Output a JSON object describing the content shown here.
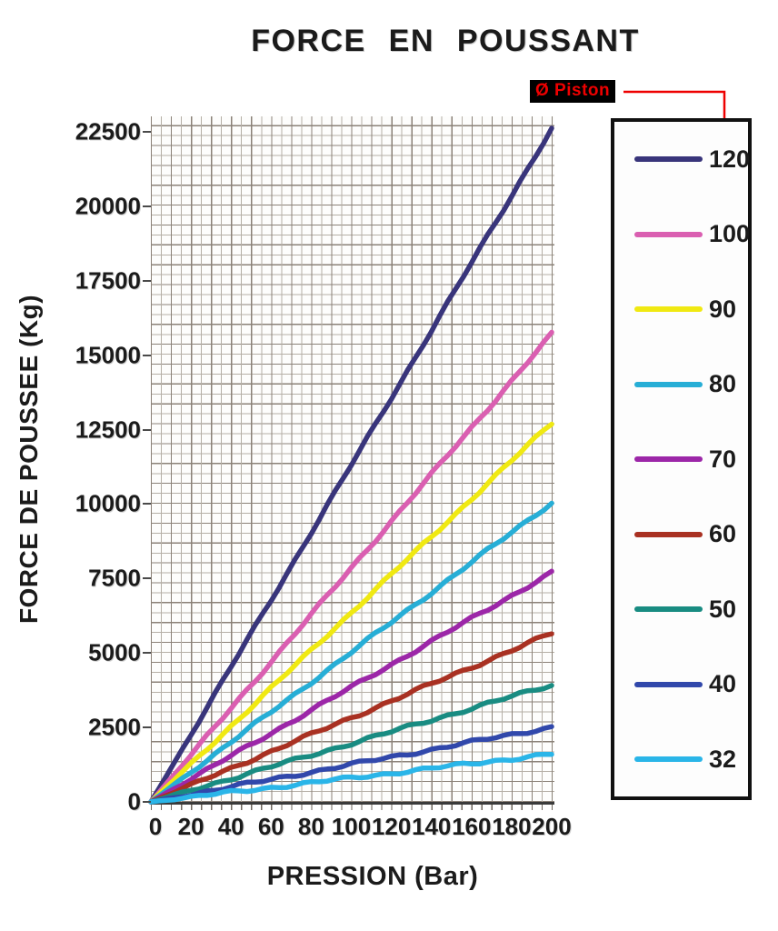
{
  "title": "FORCE EN POUSSANT",
  "annotation": {
    "label": "Ø Piston",
    "text_color": "#ee0000",
    "bg_color": "#000000",
    "line_color": "#ee0000"
  },
  "chart_data": {
    "type": "line",
    "title": "FORCE EN POUSSANT",
    "xlabel": "PRESSION (Bar)",
    "ylabel": "FORCE DE POUSSEE (Kg)",
    "xlim": [
      0,
      200
    ],
    "ylim": [
      0,
      22500
    ],
    "x_ticks": [
      0,
      20,
      40,
      60,
      80,
      100,
      120,
      140,
      160,
      180,
      200
    ],
    "y_ticks": [
      0,
      2500,
      5000,
      7500,
      10000,
      12500,
      15000,
      17500,
      20000,
      22500
    ],
    "grid": true,
    "legend_title": "Ø Piston",
    "legend_position": "right",
    "x": [
      0,
      20,
      40,
      60,
      80,
      100,
      120,
      140,
      160,
      180,
      200
    ],
    "series": [
      {
        "name": "120",
        "color": "#39357b",
        "values": [
          0,
          2262,
          4524,
          6786,
          9048,
          11310,
          13572,
          15834,
          18096,
          20358,
          22620
        ]
      },
      {
        "name": "100",
        "color": "#da5fb1",
        "values": [
          0,
          1571,
          3142,
          4712,
          6283,
          7854,
          9425,
          10996,
          12566,
          14137,
          15708
        ]
      },
      {
        "name": "90",
        "color": "#f0e912",
        "values": [
          0,
          1272,
          2545,
          3817,
          5089,
          6362,
          7634,
          8906,
          10179,
          11451,
          12723
        ]
      },
      {
        "name": "80",
        "color": "#27aed6",
        "values": [
          0,
          1005,
          2011,
          3016,
          4021,
          5027,
          6032,
          7037,
          8042,
          9048,
          10053
        ]
      },
      {
        "name": "70",
        "color": "#9c27a8",
        "values": [
          0,
          770,
          1539,
          2309,
          3079,
          3848,
          4618,
          5388,
          6158,
          6927,
          7697
        ]
      },
      {
        "name": "60",
        "color": "#a93122",
        "values": [
          0,
          565,
          1131,
          1696,
          2262,
          2827,
          3393,
          3958,
          4524,
          5089,
          5655
        ]
      },
      {
        "name": "50",
        "color": "#198c82",
        "values": [
          0,
          393,
          785,
          1178,
          1571,
          1963,
          2356,
          2749,
          3142,
          3534,
          3927
        ]
      },
      {
        "name": "40",
        "color": "#3148ab",
        "values": [
          0,
          251,
          503,
          754,
          1005,
          1257,
          1508,
          1759,
          2011,
          2262,
          2513
        ]
      },
      {
        "name": "32",
        "color": "#2ab5e8",
        "values": [
          0,
          161,
          322,
          483,
          643,
          804,
          965,
          1126,
          1287,
          1447,
          1608
        ]
      }
    ]
  }
}
